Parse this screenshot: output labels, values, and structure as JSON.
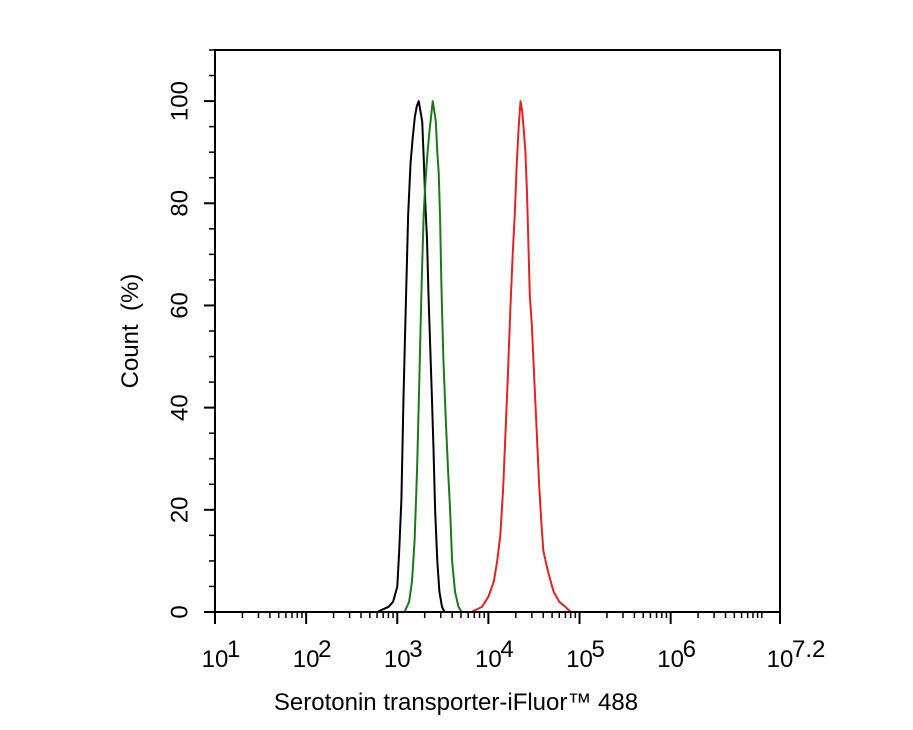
{
  "chart_data": {
    "type": "line",
    "title": "",
    "xlabel": "Serotonin transporter-iFluor™ 488",
    "ylabel": "Count  (%)",
    "xscale": "log",
    "xlim": [
      10,
      15848931.92
    ],
    "ylim": [
      0,
      110
    ],
    "grid": false,
    "legend": "none",
    "x_ticks": [
      {
        "value": 10,
        "base": "10",
        "exp": "1"
      },
      {
        "value": 100,
        "base": "10",
        "exp": "2"
      },
      {
        "value": 1000,
        "base": "10",
        "exp": "3"
      },
      {
        "value": 10000,
        "base": "10",
        "exp": "4"
      },
      {
        "value": 100000,
        "base": "10",
        "exp": "5"
      },
      {
        "value": 1000000,
        "base": "10",
        "exp": "6"
      },
      {
        "value": 15848931.92,
        "base": "10",
        "exp": "7.2"
      }
    ],
    "y_ticks": [
      {
        "value": 0,
        "label": "0"
      },
      {
        "value": 20,
        "label": "20"
      },
      {
        "value": 40,
        "label": "40"
      },
      {
        "value": 60,
        "label": "60"
      },
      {
        "value": 80,
        "label": "80"
      },
      {
        "value": 100,
        "label": "100"
      }
    ],
    "series": [
      {
        "color": "#000000",
        "x": [
          600,
          800,
          900,
          1000,
          1050,
          1110,
          1170,
          1240,
          1320,
          1400,
          1480,
          1560,
          1640,
          1720,
          1800,
          1880,
          1960,
          2040,
          2120,
          2200,
          2300,
          2400,
          2500,
          2600,
          2750,
          2900,
          3100,
          3300
        ],
        "y": [
          0,
          1,
          2,
          5,
          12,
          22,
          42,
          60,
          78,
          88,
          93,
          97,
          99,
          100,
          98,
          96,
          88,
          79,
          73,
          62,
          52,
          42,
          32,
          20,
          10,
          4,
          1,
          0
        ]
      },
      {
        "color": "#1a7a1a",
        "x": [
          1200,
          1350,
          1450,
          1550,
          1650,
          1750,
          1850,
          1950,
          2050,
          2150,
          2250,
          2350,
          2450,
          2550,
          2650,
          2750,
          2850,
          2950,
          3050,
          3200,
          3400,
          3600,
          3800,
          4000,
          4300,
          4700,
          5100
        ],
        "y": [
          0,
          2,
          6,
          14,
          28,
          46,
          64,
          78,
          85,
          90,
          94,
          97,
          100,
          98,
          96,
          90,
          86,
          77,
          64,
          50,
          38,
          28,
          20,
          10,
          4,
          1,
          0
        ]
      },
      {
        "color": "#e32222",
        "x": [
          6500,
          8500,
          10000,
          11500,
          12500,
          13500,
          14500,
          15500,
          16500,
          17500,
          18500,
          19500,
          20500,
          21500,
          22500,
          23500,
          24500,
          25500,
          26500,
          27500,
          28500,
          30000,
          32000,
          34000,
          36000,
          38000,
          40000,
          45000,
          52000,
          60000,
          70000,
          80000
        ],
        "y": [
          0,
          1,
          3,
          6,
          10,
          15,
          24,
          36,
          48,
          60,
          70,
          78,
          88,
          95,
          100,
          98,
          94,
          90,
          82,
          72,
          62,
          56,
          45,
          35,
          25,
          18,
          12,
          8,
          4,
          2,
          1,
          0
        ]
      }
    ]
  }
}
